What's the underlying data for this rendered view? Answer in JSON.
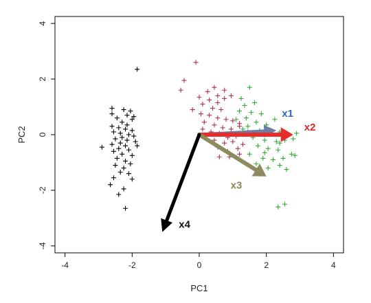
{
  "chart_data": {
    "type": "scatter",
    "title": "",
    "xlabel": "PC1",
    "ylabel": "PC2",
    "xlim": [
      -4.3,
      4.3
    ],
    "ylim": [
      -4.25,
      4.25
    ],
    "xticks": [
      -4,
      -2,
      0,
      2,
      4
    ],
    "yticks": [
      -4,
      -2,
      0,
      2,
      4
    ],
    "grid": false,
    "marker": "+",
    "series": [
      {
        "color": "#000000",
        "points": [
          [
            -1.85,
            2.35
          ],
          [
            -2.6,
            0.95
          ],
          [
            -2.25,
            0.9
          ],
          [
            -2.05,
            0.85
          ],
          [
            -2.6,
            0.75
          ],
          [
            -2.15,
            0.7
          ],
          [
            -1.95,
            0.65
          ],
          [
            -2.45,
            0.6
          ],
          [
            -2.0,
            0.55
          ],
          [
            -2.3,
            0.45
          ],
          [
            -2.15,
            0.35
          ],
          [
            -2.6,
            0.3
          ],
          [
            -2.4,
            0.25
          ],
          [
            -2.2,
            0.2
          ],
          [
            -2.0,
            0.15
          ],
          [
            -2.55,
            0.1
          ],
          [
            -2.35,
            0.05
          ],
          [
            -2.1,
            0.0
          ],
          [
            -1.95,
            -0.05
          ],
          [
            -2.3,
            -0.1
          ],
          [
            -2.5,
            -0.15
          ],
          [
            -2.15,
            -0.2
          ],
          [
            -1.9,
            -0.25
          ],
          [
            -2.35,
            -0.3
          ],
          [
            -2.6,
            -0.35
          ],
          [
            -2.2,
            -0.4
          ],
          [
            -1.85,
            -0.4
          ],
          [
            -2.9,
            -0.45
          ],
          [
            -2.4,
            -0.5
          ],
          [
            -2.1,
            -0.55
          ],
          [
            -2.55,
            -0.6
          ],
          [
            -2.3,
            -0.7
          ],
          [
            -2.0,
            -0.75
          ],
          [
            -2.45,
            -0.85
          ],
          [
            -2.2,
            -0.95
          ],
          [
            -2.05,
            -1.05
          ],
          [
            -2.5,
            -1.1
          ],
          [
            -2.25,
            -1.2
          ],
          [
            -2.35,
            -1.35
          ],
          [
            -2.1,
            -1.4
          ],
          [
            -2.55,
            -1.55
          ],
          [
            -2.0,
            -1.6
          ],
          [
            -2.65,
            -1.8
          ],
          [
            -2.25,
            -1.95
          ],
          [
            -2.4,
            -2.15
          ],
          [
            -2.2,
            -2.65
          ]
        ]
      },
      {
        "color": "#b03050",
        "points": [
          [
            -0.1,
            2.6
          ],
          [
            -0.45,
            1.95
          ],
          [
            -0.55,
            1.6
          ],
          [
            0.45,
            1.7
          ],
          [
            0.75,
            1.6
          ],
          [
            0.55,
            1.4
          ],
          [
            0.25,
            1.55
          ],
          [
            0.0,
            1.35
          ],
          [
            0.3,
            1.25
          ],
          [
            0.55,
            1.15
          ],
          [
            0.75,
            1.3
          ],
          [
            0.95,
            1.4
          ],
          [
            0.1,
            1.1
          ],
          [
            0.4,
            0.95
          ],
          [
            0.65,
            0.9
          ],
          [
            -0.2,
            0.9
          ],
          [
            0.05,
            0.75
          ],
          [
            0.3,
            0.7
          ],
          [
            0.55,
            0.6
          ],
          [
            0.8,
            0.55
          ],
          [
            1.0,
            0.5
          ],
          [
            1.2,
            0.4
          ],
          [
            0.15,
            0.45
          ],
          [
            0.45,
            0.35
          ],
          [
            0.7,
            0.25
          ],
          [
            0.95,
            0.2
          ],
          [
            1.2,
            0.3
          ],
          [
            0.1,
            0.2
          ],
          [
            0.35,
            0.1
          ],
          [
            0.6,
            0.05
          ],
          [
            0.85,
            -0.1
          ],
          [
            1.1,
            -0.05
          ],
          [
            0.45,
            -0.2
          ],
          [
            0.75,
            -0.3
          ],
          [
            1.0,
            -0.25
          ],
          [
            1.3,
            -0.35
          ],
          [
            0.55,
            -0.45
          ],
          [
            0.85,
            -0.6
          ],
          [
            1.15,
            -0.5
          ],
          [
            0.6,
            -0.8
          ],
          [
            0.9,
            -0.8
          ],
          [
            1.2,
            -0.7
          ],
          [
            0.15,
            -0.05
          ],
          [
            1.45,
            0.1
          ]
        ]
      },
      {
        "color": "#33aa33",
        "points": [
          [
            1.25,
            1.3
          ],
          [
            1.5,
            1.7
          ],
          [
            1.35,
            1.05
          ],
          [
            1.65,
            1.15
          ],
          [
            1.2,
            0.85
          ],
          [
            1.55,
            0.8
          ],
          [
            1.85,
            0.75
          ],
          [
            1.1,
            0.55
          ],
          [
            1.4,
            0.6
          ],
          [
            1.7,
            0.45
          ],
          [
            2.0,
            0.35
          ],
          [
            2.25,
            0.55
          ],
          [
            1.45,
            0.3
          ],
          [
            1.8,
            0.15
          ],
          [
            2.1,
            0.05
          ],
          [
            2.4,
            0.1
          ],
          [
            2.65,
            0.0
          ],
          [
            1.6,
            -0.1
          ],
          [
            1.95,
            -0.2
          ],
          [
            2.3,
            -0.25
          ],
          [
            2.55,
            -0.2
          ],
          [
            2.8,
            -0.15
          ],
          [
            1.75,
            -0.4
          ],
          [
            2.05,
            -0.5
          ],
          [
            2.35,
            -0.55
          ],
          [
            1.5,
            -0.7
          ],
          [
            1.9,
            -0.85
          ],
          [
            2.2,
            -0.9
          ],
          [
            2.5,
            -0.85
          ],
          [
            2.75,
            -0.7
          ],
          [
            1.7,
            -1.05
          ],
          [
            2.05,
            -1.2
          ],
          [
            2.4,
            -1.1
          ],
          [
            2.6,
            -1.25
          ],
          [
            1.95,
            -0.65
          ],
          [
            2.85,
            -0.75
          ],
          [
            2.4,
            -0.3
          ],
          [
            2.55,
            -2.5
          ],
          [
            2.35,
            -2.6
          ],
          [
            1.3,
            0.2
          ],
          [
            2.9,
            0.05
          ]
        ]
      }
    ],
    "vectors": [
      {
        "label": "x1",
        "color": "#2f6bb5",
        "line_color": "#6a7fa3",
        "end": [
          2.3,
          0.15
        ],
        "width": 5
      },
      {
        "label": "x2",
        "color": "#d62828",
        "line_color": "#e82b2b",
        "end": [
          2.8,
          0.0
        ],
        "width": 6
      },
      {
        "label": "x3",
        "color": "#8c8a5a",
        "line_color": "#8d8a5e",
        "end": [
          2.0,
          -1.5
        ],
        "width": 6
      },
      {
        "label": "x4",
        "color": "#111111",
        "line_color": "#000000",
        "end": [
          -1.1,
          -3.5
        ],
        "width": 5
      }
    ]
  }
}
